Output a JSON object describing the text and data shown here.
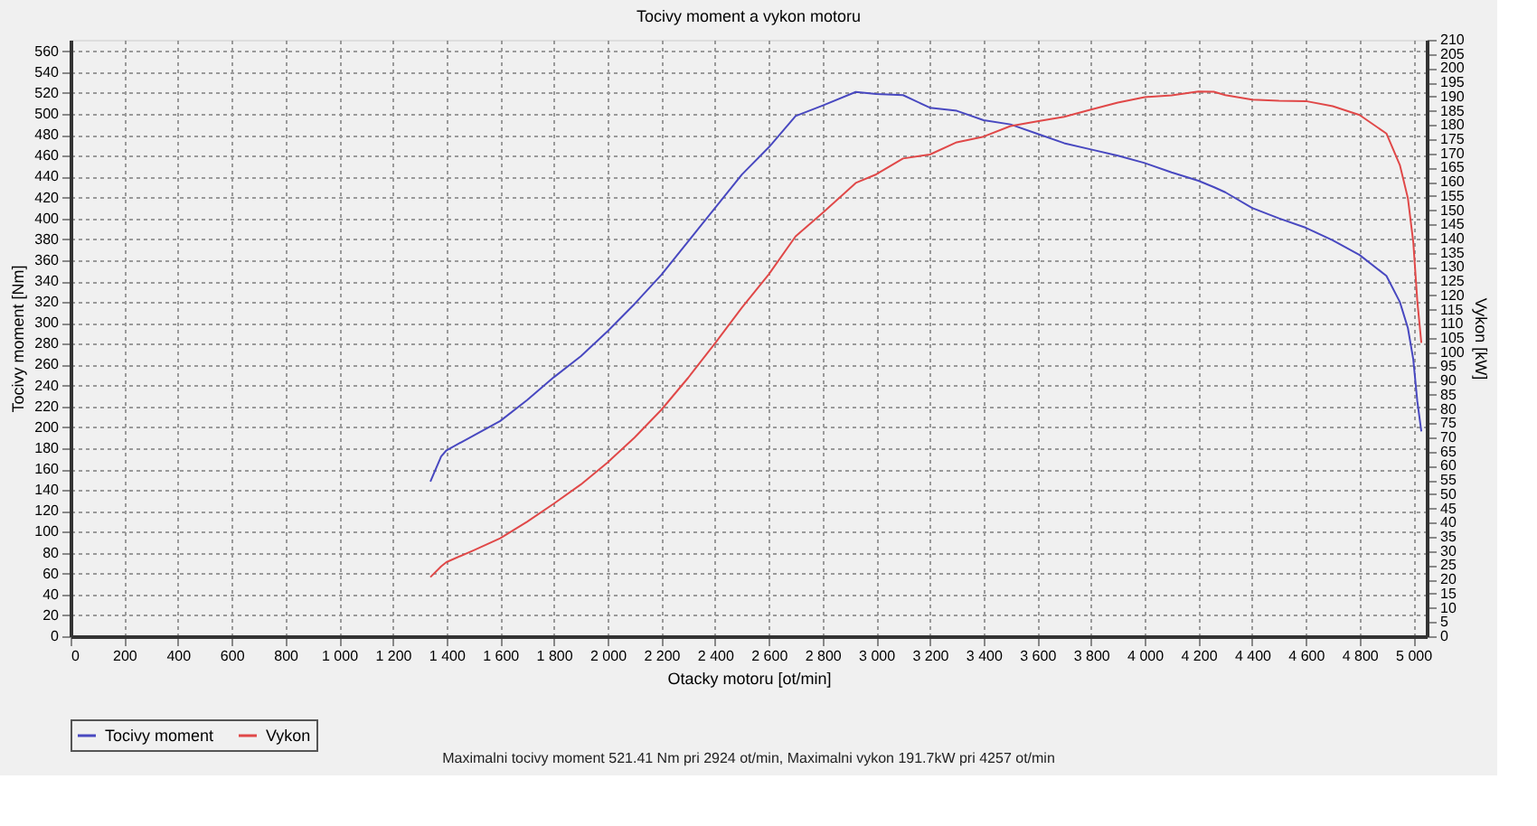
{
  "chart_data": {
    "type": "line",
    "title": "Tocivy moment a vykon motoru",
    "xlabel": "Otacky motoru [ot/min]",
    "ylabel": "Tocivy moment [Nm]",
    "y2label": "Vykon [kW]",
    "annotations": [
      "Maximalni tocivy moment 521.41 Nm pri 2924 ot/min,  Maximalni vykon 191.7kW pri 4257 ot/min"
    ],
    "series": [
      {
        "name": "Tocivy moment",
        "color": "#4848c0",
        "x": [
          1340,
          1380,
          1400,
          1500,
          1600,
          1700,
          1800,
          1900,
          2000,
          2100,
          2200,
          2300,
          2400,
          2500,
          2600,
          2700,
          2800,
          2924,
          3000,
          3100,
          3200,
          3300,
          3400,
          3500,
          3600,
          3700,
          3800,
          3900,
          4000,
          4100,
          4200,
          4257,
          4300,
          4400,
          4500,
          4600,
          4700,
          4800,
          4900,
          4950,
          4980,
          5000,
          5015,
          5030
        ],
        "values": [
          148,
          172,
          178,
          192,
          206,
          226,
          248,
          268,
          292,
          318,
          346,
          378,
          410,
          442,
          468,
          498,
          508,
          521,
          519,
          518,
          506,
          503,
          494,
          490,
          481,
          472,
          466,
          460,
          453,
          444,
          436,
          430,
          425,
          410,
          400,
          391,
          379,
          365,
          345,
          320,
          295,
          265,
          225,
          196
        ]
      },
      {
        "name": "Vykon",
        "color": "#e04848",
        "axis": "y2",
        "x": [
          1340,
          1380,
          1400,
          1500,
          1600,
          1700,
          1800,
          1900,
          2000,
          2100,
          2200,
          2300,
          2400,
          2500,
          2600,
          2700,
          2800,
          2924,
          3000,
          3100,
          3200,
          3300,
          3400,
          3500,
          3600,
          3700,
          3800,
          3900,
          4000,
          4100,
          4200,
          4257,
          4300,
          4400,
          4500,
          4600,
          4700,
          4800,
          4900,
          4950,
          4980,
          5000,
          5015,
          5030
        ],
        "values": [
          20.8,
          24.6,
          26.1,
          30.2,
          34.5,
          40.3,
          46.7,
          53.4,
          61.2,
          69.9,
          79.7,
          91.0,
          103.1,
          115.7,
          127.4,
          140.8,
          149.0,
          159.6,
          162.6,
          168.2,
          169.6,
          173.9,
          175.9,
          179.6,
          181.3,
          182.9,
          185.4,
          187.9,
          189.8,
          190.4,
          191.8,
          191.7,
          190.5,
          188.9,
          188.5,
          188.4,
          186.6,
          183.5,
          177.0,
          165.9,
          154.2,
          138.8,
          118.1,
          103.3
        ]
      }
    ],
    "xlim": [
      0,
      5050
    ],
    "ylim": [
      0,
      571
    ],
    "y2lim": [
      0,
      210
    ],
    "xticks": [
      0,
      200,
      400,
      600,
      800,
      {
        "value": 1000,
        "label": "1 000"
      },
      {
        "value": 1200,
        "label": "1 200"
      },
      {
        "value": 1400,
        "label": "1 400"
      },
      {
        "value": 1600,
        "label": "1 600"
      },
      {
        "value": 1800,
        "label": "1 800"
      },
      {
        "value": 2000,
        "label": "2 000"
      },
      {
        "value": 2200,
        "label": "2 200"
      },
      {
        "value": 2400,
        "label": "2 400"
      },
      {
        "value": 2600,
        "label": "2 600"
      },
      {
        "value": 2800,
        "label": "2 800"
      },
      {
        "value": 3000,
        "label": "3 000"
      },
      {
        "value": 3200,
        "label": "3 200"
      },
      {
        "value": 3400,
        "label": "3 400"
      },
      {
        "value": 3600,
        "label": "3 600"
      },
      {
        "value": 3800,
        "label": "3 800"
      },
      {
        "value": 4000,
        "label": "4 000"
      },
      {
        "value": 4200,
        "label": "4 200"
      },
      {
        "value": 4400,
        "label": "4 400"
      },
      {
        "value": 4600,
        "label": "4 600"
      },
      {
        "value": 4800,
        "label": "4 800"
      },
      {
        "value": 5000,
        "label": "5 000"
      }
    ],
    "yticks": [
      0,
      20,
      40,
      60,
      80,
      100,
      120,
      140,
      160,
      180,
      200,
      220,
      240,
      260,
      280,
      300,
      320,
      340,
      360,
      380,
      400,
      420,
      440,
      460,
      480,
      500,
      520,
      540,
      560
    ],
    "y2ticks": [
      0,
      5,
      10,
      15,
      20,
      25,
      30,
      35,
      40,
      45,
      50,
      55,
      60,
      65,
      70,
      75,
      80,
      85,
      90,
      95,
      100,
      105,
      110,
      115,
      120,
      125,
      130,
      135,
      140,
      145,
      150,
      155,
      160,
      165,
      170,
      175,
      180,
      185,
      190,
      195,
      200,
      205,
      210
    ],
    "grid": true,
    "legend": "bottom",
    "marker": "none",
    "line_style": "solid"
  }
}
